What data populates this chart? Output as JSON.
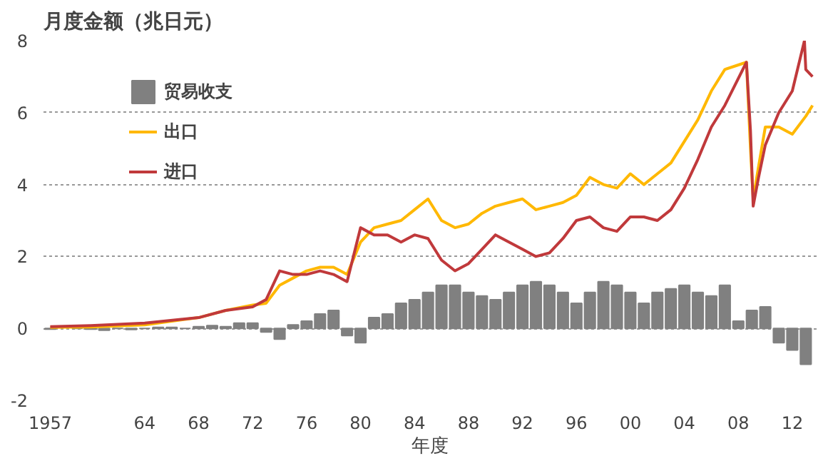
{
  "chart_data": {
    "type": "line",
    "title": "月度金额（兆日元）",
    "xlabel": "年度",
    "xlim": [
      1956.5,
      2013.8
    ],
    "ylim": [
      -2,
      8
    ],
    "xticks": [
      {
        "value": 1957,
        "label": "1957"
      },
      {
        "value": 1964,
        "label": "64"
      },
      {
        "value": 1968,
        "label": "68"
      },
      {
        "value": 1972,
        "label": "72"
      },
      {
        "value": 1976,
        "label": "76"
      },
      {
        "value": 1980,
        "label": "80"
      },
      {
        "value": 1984,
        "label": "84"
      },
      {
        "value": 1988,
        "label": "88"
      },
      {
        "value": 1992,
        "label": "92"
      },
      {
        "value": 1996,
        "label": "96"
      },
      {
        "value": 2000,
        "label": "00"
      },
      {
        "value": 2004,
        "label": "04"
      },
      {
        "value": 2008,
        "label": "08"
      },
      {
        "value": 2012,
        "label": "12"
      }
    ],
    "yticks": [
      -2,
      0,
      2,
      4,
      6,
      8
    ],
    "grid": "y",
    "legend": "top left",
    "series": [
      {
        "name": "贸易收支",
        "type": "bar",
        "color": "#808080",
        "x": [
          1957,
          1958,
          1959,
          1960,
          1961,
          1962,
          1963,
          1964,
          1965,
          1966,
          1967,
          1968,
          1969,
          1970,
          1971,
          1972,
          1973,
          1974,
          1975,
          1976,
          1977,
          1978,
          1979,
          1980,
          1981,
          1982,
          1983,
          1984,
          1985,
          1986,
          1987,
          1988,
          1989,
          1990,
          1991,
          1992,
          1993,
          1994,
          1995,
          1996,
          1997,
          1998,
          1999,
          2000,
          2001,
          2002,
          2003,
          2004,
          2005,
          2006,
          2007,
          2008,
          2009,
          2010,
          2011,
          2012,
          2013
        ],
        "values": [
          -0.02,
          null,
          0.0,
          -0.02,
          -0.05,
          0.0,
          -0.03,
          0.0,
          0.03,
          0.03,
          0.0,
          0.05,
          0.08,
          0.05,
          0.15,
          0.15,
          -0.1,
          -0.3,
          0.1,
          0.2,
          0.4,
          0.5,
          -0.2,
          -0.4,
          0.3,
          0.4,
          0.7,
          0.8,
          1.0,
          1.2,
          1.2,
          1.0,
          0.9,
          0.8,
          1.0,
          1.2,
          1.3,
          1.2,
          1.0,
          0.7,
          1.0,
          1.3,
          1.2,
          1.0,
          0.7,
          1.0,
          1.1,
          1.2,
          1.0,
          0.9,
          1.2,
          0.2,
          0.5,
          0.6,
          -0.4,
          -0.6,
          -1.0
        ]
      },
      {
        "name": "出口",
        "color": "#ffb800",
        "x": [
          1957,
          1960,
          1964,
          1968,
          1970,
          1972,
          1973,
          1974,
          1975,
          1976,
          1977,
          1978,
          1979,
          1980,
          1981,
          1982,
          1983,
          1984,
          1985,
          1986,
          1987,
          1988,
          1989,
          1990,
          1991,
          1992,
          1993,
          1994,
          1995,
          1996,
          1997,
          1998,
          1999,
          2000,
          2001,
          2002,
          2003,
          2004,
          2005,
          2006,
          2007,
          2008.6,
          2008.9,
          2009.1,
          2009.5,
          2010,
          2011,
          2012,
          2013,
          2013.5
        ],
        "values": [
          0.03,
          0.04,
          0.1,
          0.3,
          0.5,
          0.65,
          0.7,
          1.2,
          1.4,
          1.6,
          1.7,
          1.7,
          1.5,
          2.4,
          2.8,
          2.9,
          3.0,
          3.3,
          3.6,
          3.0,
          2.8,
          2.9,
          3.2,
          3.4,
          3.5,
          3.6,
          3.3,
          3.4,
          3.5,
          3.7,
          4.2,
          4.0,
          3.9,
          4.3,
          4.0,
          4.3,
          4.6,
          5.2,
          5.8,
          6.6,
          7.2,
          7.4,
          5.0,
          3.6,
          4.5,
          5.6,
          5.6,
          5.4,
          5.9,
          6.2
        ]
      },
      {
        "name": "进口",
        "color": "#c0393b",
        "x": [
          1957,
          1960,
          1964,
          1968,
          1970,
          1972,
          1973,
          1974,
          1975,
          1976,
          1977,
          1978,
          1979,
          1980,
          1981,
          1982,
          1983,
          1984,
          1985,
          1986,
          1987,
          1988,
          1989,
          1990,
          1991,
          1992,
          1993,
          1994,
          1995,
          1996,
          1997,
          1998,
          1999,
          2000,
          2001,
          2002,
          2003,
          2004,
          2005,
          2006,
          2007,
          2008.6,
          2008.9,
          2009.1,
          2009.5,
          2010,
          2011,
          2012,
          2012.9,
          2013,
          2013.5
        ],
        "values": [
          0.05,
          0.08,
          0.15,
          0.3,
          0.5,
          0.6,
          0.8,
          1.6,
          1.5,
          1.5,
          1.6,
          1.5,
          1.3,
          2.8,
          2.6,
          2.6,
          2.4,
          2.6,
          2.5,
          1.9,
          1.6,
          1.8,
          2.2,
          2.6,
          2.4,
          2.2,
          2.0,
          2.1,
          2.5,
          3.0,
          3.1,
          2.8,
          2.7,
          3.1,
          3.1,
          3.0,
          3.3,
          3.9,
          4.7,
          5.6,
          6.2,
          7.4,
          5.5,
          3.4,
          4.2,
          5.1,
          6.0,
          6.6,
          8.0,
          7.2,
          7.0
        ]
      }
    ]
  }
}
